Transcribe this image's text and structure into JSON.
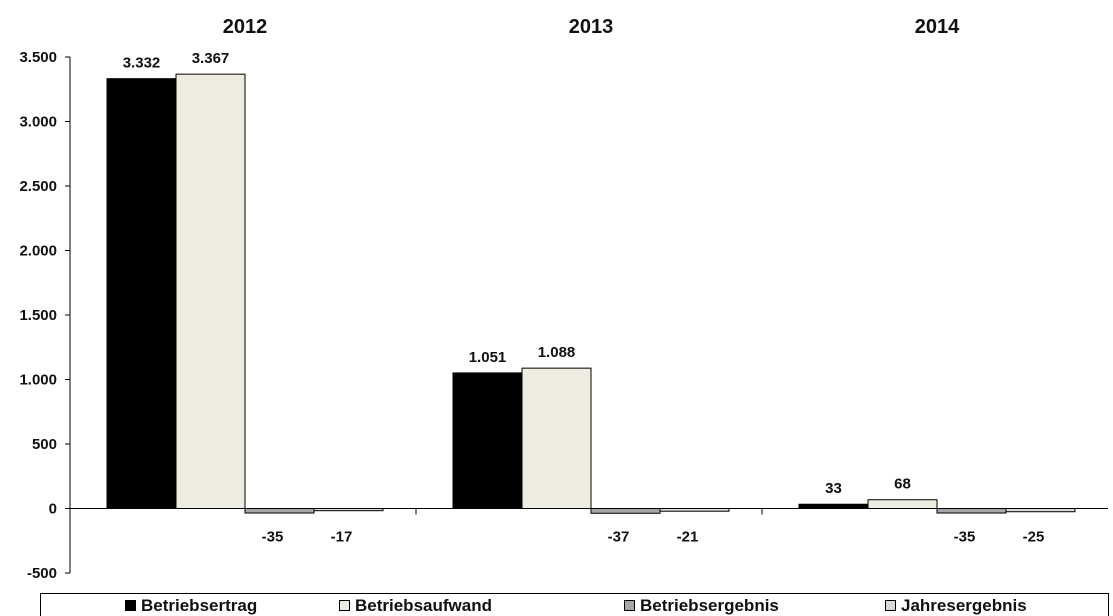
{
  "chart_data": {
    "type": "bar",
    "categories": [
      "2012",
      "2013",
      "2014"
    ],
    "series": [
      {
        "name": "Betriebsertrag",
        "values": [
          3332,
          1051,
          33
        ],
        "labels": [
          "3.332",
          "1.051",
          "33"
        ],
        "color": "#000000"
      },
      {
        "name": "Betriebsaufwand",
        "values": [
          3367,
          1088,
          68
        ],
        "labels": [
          "3.367",
          "1.088",
          "68"
        ],
        "color": "#EEECE1"
      },
      {
        "name": "Betriebsergebnis",
        "values": [
          -35,
          -37,
          -35
        ],
        "labels": [
          "-35",
          "-37",
          "-35"
        ],
        "color": "#A6A6A6"
      },
      {
        "name": "Jahresergebnis",
        "values": [
          -17,
          -21,
          -25
        ],
        "labels": [
          "-17",
          "-21",
          "-25"
        ],
        "color": "#D9D9D9"
      }
    ],
    "ylim": [
      -500,
      3500
    ],
    "yticks": [
      -500,
      0,
      500,
      1000,
      1500,
      2000,
      2500,
      3000,
      3500
    ],
    "ytick_labels": [
      "-500",
      "0",
      "500",
      "1.000",
      "1.500",
      "2.000",
      "2.500",
      "3.000",
      "3.500"
    ],
    "legend_position": "bottom",
    "grid": false
  }
}
